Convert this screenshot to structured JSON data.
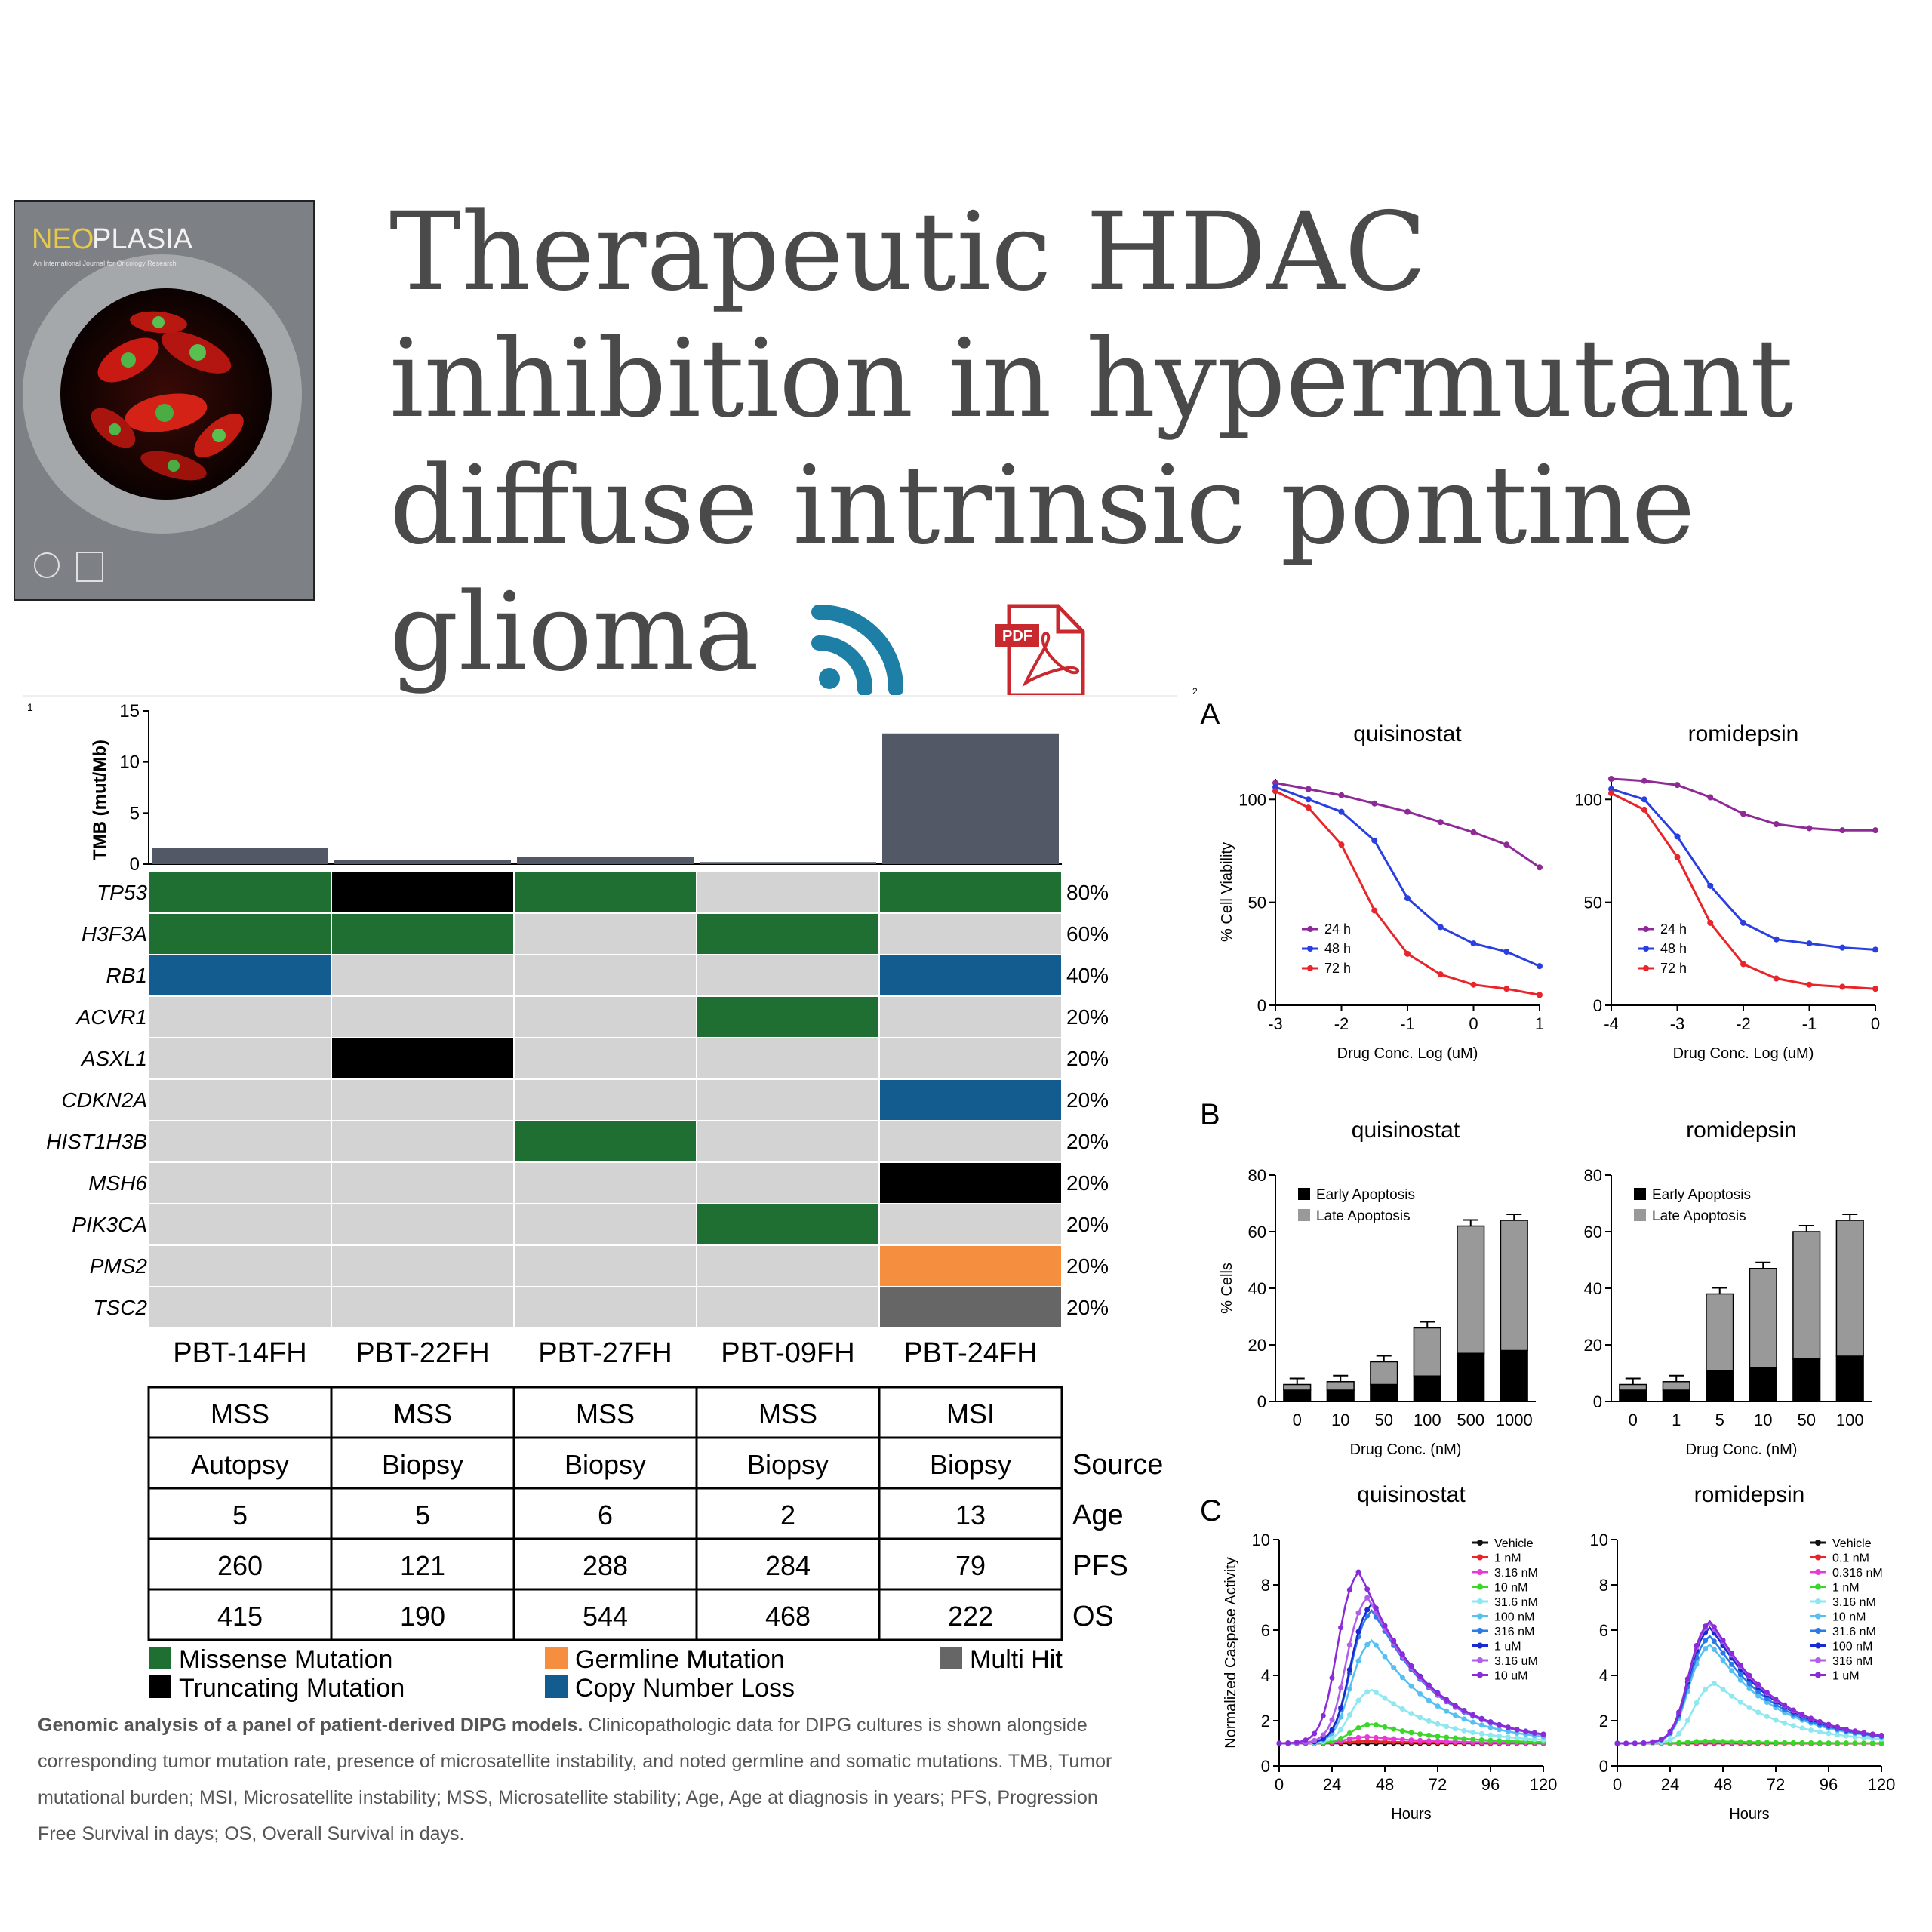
{
  "journal": {
    "name_neo": "NEO",
    "name_plasia": "PLASIA",
    "subtitle": "An International Journal for Oncology Research"
  },
  "title": "Therapeutic HDAC inhibition in hypermutant diffuse intrinsic pontine glioma",
  "icons": [
    "rss-icon",
    "pdf-icon"
  ],
  "pdf_label": "PDF",
  "figure1": {
    "panel_marker": "1",
    "tmb_ylabel": "TMB (mut/Mb)",
    "tmb_ticks": [
      "0",
      "5",
      "10",
      "15"
    ],
    "samples": [
      "PBT-14FH",
      "PBT-22FH",
      "PBT-27FH",
      "PBT-09FH",
      "PBT-24FH"
    ],
    "tmb_values": [
      1.6,
      0.4,
      0.7,
      0.2,
      12.8
    ],
    "genes": [
      "TP53",
      "H3F3A",
      "RB1",
      "ACVR1",
      "ASXL1",
      "CDKN2A",
      "HIST1H3B",
      "MSH6",
      "PIK3CA",
      "PMS2",
      "TSC2"
    ],
    "gene_pct": [
      "80%",
      "60%",
      "40%",
      "20%",
      "20%",
      "20%",
      "20%",
      "20%",
      "20%",
      "20%",
      "20%"
    ],
    "matrix": [
      [
        "missense",
        "truncating",
        "missense",
        "none",
        "missense"
      ],
      [
        "missense",
        "missense",
        "none",
        "missense",
        "none"
      ],
      [
        "cnloss",
        "none",
        "none",
        "none",
        "cnloss"
      ],
      [
        "none",
        "none",
        "none",
        "missense",
        "none"
      ],
      [
        "none",
        "truncating",
        "none",
        "none",
        "none"
      ],
      [
        "none",
        "none",
        "none",
        "none",
        "cnloss"
      ],
      [
        "none",
        "none",
        "missense",
        "none",
        "none"
      ],
      [
        "none",
        "none",
        "none",
        "none",
        "truncating"
      ],
      [
        "none",
        "none",
        "none",
        "missense",
        "none"
      ],
      [
        "none",
        "none",
        "none",
        "none",
        "germline"
      ],
      [
        "none",
        "none",
        "none",
        "none",
        "multihit"
      ]
    ],
    "colors": {
      "missense": "#1f6e32",
      "truncating": "#000000",
      "germline": "#f58e3e",
      "cnloss": "#135c8f",
      "multihit": "#666666",
      "none": "#d3d3d3",
      "tmb_bar": "#525866"
    },
    "table": {
      "rows": [
        {
          "label": "",
          "cells": [
            "MSS",
            "MSS",
            "MSS",
            "MSS",
            "MSI"
          ]
        },
        {
          "label": "Source",
          "cells": [
            "Autopsy",
            "Biopsy",
            "Biopsy",
            "Biopsy",
            "Biopsy"
          ]
        },
        {
          "label": "Age",
          "cells": [
            "5",
            "5",
            "6",
            "2",
            "13"
          ]
        },
        {
          "label": "PFS",
          "cells": [
            "260",
            "121",
            "288",
            "284",
            "79"
          ]
        },
        {
          "label": "OS",
          "cells": [
            "415",
            "190",
            "544",
            "468",
            "222"
          ]
        }
      ]
    },
    "legend": [
      {
        "label": "Missense Mutation",
        "key": "missense"
      },
      {
        "label": "Germline Mutation",
        "key": "germline"
      },
      {
        "label": "Multi Hit",
        "key": "multihit"
      },
      {
        "label": "Truncating Mutation",
        "key": "truncating"
      },
      {
        "label": "Copy Number Loss",
        "key": "cnloss"
      }
    ]
  },
  "caption": {
    "bold": "Genomic analysis of a panel of patient-derived DIPG models.",
    "text": " Clinicopathologic data for DIPG cultures is shown alongside corresponding tumor mutation rate, presence of microsatellite instability, and noted germline and somatic mutations. TMB, Tumor mutational burden; MSI, Microsatellite instability; MSS, Microsatellite stability; Age, Age at diagnosis in years; PFS, Progression Free Survival in days; OS, Overall Survival in days."
  },
  "figure2": {
    "panel_marker": "2",
    "panels": {
      "A": "A",
      "B": "B",
      "C": "C"
    },
    "chart_data": [
      {
        "type": "line",
        "panel": "A",
        "title": "quisinostat",
        "xlabel": "Drug Conc. Log (uM)",
        "ylabel": "% Cell Viability",
        "xlim": [
          -3,
          1
        ],
        "ylim": [
          0,
          110
        ],
        "xticks": [
          "-3",
          "-2",
          "-1",
          "0",
          "1"
        ],
        "yticks": [
          "0",
          "50",
          "100"
        ],
        "x": [
          -3,
          -2.5,
          -2,
          -1.5,
          -1,
          -0.5,
          0,
          0.5,
          1
        ],
        "series": [
          {
            "name": "24 h",
            "color": "#8e2a96",
            "values": [
              108,
              105,
              102,
              98,
              94,
              89,
              84,
              78,
              67
            ]
          },
          {
            "name": "48 h",
            "color": "#2a3fe0",
            "values": [
              106,
              100,
              94,
              80,
              52,
              38,
              30,
              26,
              19
            ]
          },
          {
            "name": "72 h",
            "color": "#e8252a",
            "values": [
              104,
              96,
              78,
              46,
              25,
              15,
              10,
              8,
              5
            ]
          }
        ]
      },
      {
        "type": "line",
        "panel": "A",
        "title": "romidepsin",
        "xlabel": "Drug Conc. Log (uM)",
        "ylabel": "",
        "xlim": [
          -4,
          0
        ],
        "ylim": [
          0,
          110
        ],
        "xticks": [
          "-4",
          "-3",
          "-2",
          "-1",
          "0"
        ],
        "yticks": [
          "0",
          "50",
          "100"
        ],
        "x": [
          -4,
          -3.5,
          -3,
          -2.5,
          -2,
          -1.5,
          -1,
          -0.5,
          0
        ],
        "series": [
          {
            "name": "24 h",
            "color": "#8e2a96",
            "values": [
              110,
              109,
              107,
              101,
              93,
              88,
              86,
              85,
              85
            ]
          },
          {
            "name": "48 h",
            "color": "#2a3fe0",
            "values": [
              105,
              100,
              82,
              58,
              40,
              32,
              30,
              28,
              27
            ]
          },
          {
            "name": "72 h",
            "color": "#e8252a",
            "values": [
              103,
              95,
              72,
              40,
              20,
              13,
              10,
              9,
              8
            ]
          }
        ]
      },
      {
        "type": "bar",
        "panel": "B",
        "title": "quisinostat",
        "xlabel": "Drug Conc. (nM)",
        "ylabel": "% Cells",
        "ylim": [
          0,
          80
        ],
        "yticks": [
          "0",
          "20",
          "40",
          "60",
          "80"
        ],
        "categories": [
          "0",
          "10",
          "50",
          "100",
          "500",
          "1000"
        ],
        "series": [
          {
            "name": "Early Apoptosis",
            "color": "#000000",
            "values": [
              4,
              4,
              6,
              9,
              17,
              18
            ]
          },
          {
            "name": "Late Apoptosis",
            "color": "#999999",
            "values": [
              2,
              3,
              8,
              17,
              45,
              46
            ]
          }
        ]
      },
      {
        "type": "bar",
        "panel": "B",
        "title": "romidepsin",
        "xlabel": "Drug Conc. (nM)",
        "ylabel": "",
        "ylim": [
          0,
          80
        ],
        "yticks": [
          "0",
          "20",
          "40",
          "60",
          "80"
        ],
        "categories": [
          "0",
          "1",
          "5",
          "10",
          "50",
          "100"
        ],
        "series": [
          {
            "name": "Early Apoptosis",
            "color": "#000000",
            "values": [
              4,
              4,
              11,
              12,
              15,
              16
            ]
          },
          {
            "name": "Late Apoptosis",
            "color": "#999999",
            "values": [
              2,
              3,
              27,
              35,
              45,
              48
            ]
          }
        ]
      },
      {
        "type": "line",
        "panel": "C",
        "title": "quisinostat",
        "xlabel": "Hours",
        "ylabel": "Normalized Caspase Activity",
        "xlim": [
          0,
          120
        ],
        "ylim": [
          0,
          10
        ],
        "xticks": [
          "0",
          "24",
          "48",
          "72",
          "96",
          "120"
        ],
        "yticks": [
          "0",
          "2",
          "4",
          "6",
          "8",
          "10"
        ],
        "series": [
          {
            "name": "Vehicle",
            "color": "#111111",
            "peak": 1.0,
            "peak_hour": 40
          },
          {
            "name": "1 nM",
            "color": "#e8252a",
            "peak": 1.1,
            "peak_hour": 40
          },
          {
            "name": "3.16 nM",
            "color": "#e83ad8",
            "peak": 1.3,
            "peak_hour": 40
          },
          {
            "name": "10 nM",
            "color": "#3ad62a",
            "peak": 1.9,
            "peak_hour": 42
          },
          {
            "name": "31.6 nM",
            "color": "#8fe8f0",
            "peak": 3.5,
            "peak_hour": 42
          },
          {
            "name": "100 nM",
            "color": "#58c0f0",
            "peak": 5.8,
            "peak_hour": 42
          },
          {
            "name": "316 nM",
            "color": "#2a7ae8",
            "peak": 7.2,
            "peak_hour": 42
          },
          {
            "name": "1 uM",
            "color": "#1a2ad0",
            "peak": 7.5,
            "peak_hour": 42
          },
          {
            "name": "3.16 uM",
            "color": "#b060e8",
            "peak": 7.8,
            "peak_hour": 40
          },
          {
            "name": "10 uM",
            "color": "#8a2ad8",
            "peak": 9.0,
            "peak_hour": 36
          }
        ]
      },
      {
        "type": "line",
        "panel": "C",
        "title": "romidepsin",
        "xlabel": "Hours",
        "ylabel": "",
        "xlim": [
          0,
          120
        ],
        "ylim": [
          0,
          10
        ],
        "xticks": [
          "0",
          "24",
          "48",
          "72",
          "96",
          "120"
        ],
        "yticks": [
          "0",
          "2",
          "4",
          "6",
          "8",
          "10"
        ],
        "series": [
          {
            "name": "Vehicle",
            "color": "#111111",
            "peak": 1.0,
            "peak_hour": 42
          },
          {
            "name": "0.1 nM",
            "color": "#e8252a",
            "peak": 1.0,
            "peak_hour": 42
          },
          {
            "name": "0.316 nM",
            "color": "#e83ad8",
            "peak": 1.05,
            "peak_hour": 42
          },
          {
            "name": "1 nM",
            "color": "#3ad62a",
            "peak": 1.1,
            "peak_hour": 42
          },
          {
            "name": "3.16 nM",
            "color": "#8fe8f0",
            "peak": 3.8,
            "peak_hour": 44
          },
          {
            "name": "10 nM",
            "color": "#58c0f0",
            "peak": 5.6,
            "peak_hour": 42
          },
          {
            "name": "31.6 nM",
            "color": "#2a7ae8",
            "peak": 6.0,
            "peak_hour": 42
          },
          {
            "name": "100 nM",
            "color": "#1a2ad0",
            "peak": 6.4,
            "peak_hour": 42
          },
          {
            "name": "316 nM",
            "color": "#b060e8",
            "peak": 6.6,
            "peak_hour": 42
          },
          {
            "name": "1 uM",
            "color": "#8a2ad8",
            "peak": 6.7,
            "peak_hour": 42
          }
        ]
      }
    ]
  }
}
